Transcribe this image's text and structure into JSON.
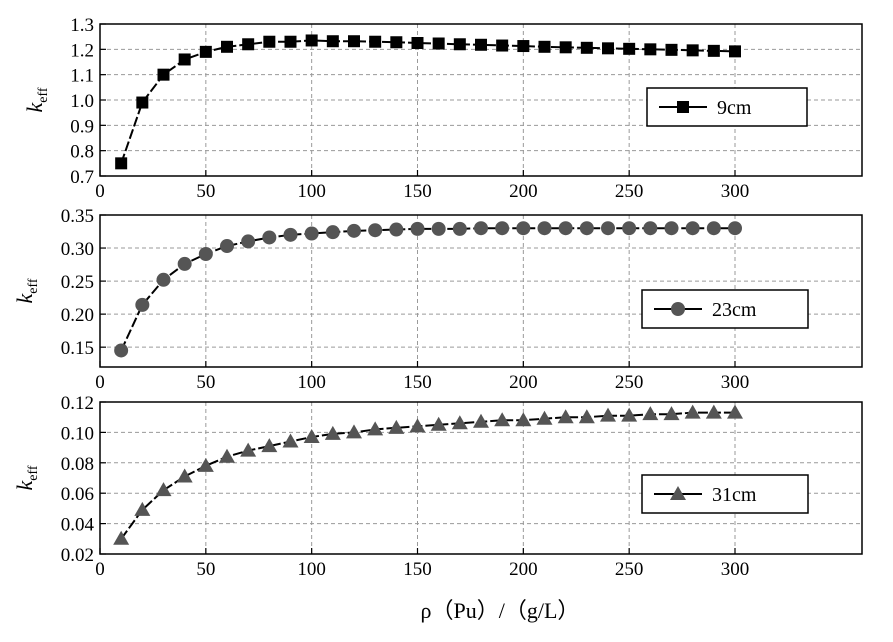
{
  "figure": {
    "xlabel": "ρ（Pu）/（g/L）",
    "ylabel_symbol": "k",
    "ylabel_subscript": "eff"
  },
  "chart_data": [
    {
      "type": "line",
      "series": [
        {
          "name": "9cm",
          "marker": "square",
          "x": [
            10,
            20,
            30,
            40,
            50,
            60,
            70,
            80,
            90,
            100,
            110,
            120,
            130,
            140,
            150,
            160,
            170,
            180,
            190,
            200,
            210,
            220,
            230,
            240,
            250,
            260,
            270,
            280,
            290,
            300
          ],
          "y": [
            0.75,
            0.99,
            1.1,
            1.16,
            1.19,
            1.21,
            1.22,
            1.23,
            1.23,
            1.235,
            1.232,
            1.232,
            1.23,
            1.228,
            1.225,
            1.223,
            1.22,
            1.218,
            1.215,
            1.213,
            1.21,
            1.208,
            1.206,
            1.204,
            1.202,
            1.2,
            1.198,
            1.196,
            1.194,
            1.192
          ]
        }
      ],
      "xlim": [
        0,
        360
      ],
      "ylim": [
        0.7,
        1.3
      ],
      "xticks": [
        "0",
        "50",
        "100",
        "150",
        "200",
        "250",
        "300"
      ],
      "yticks": [
        "0.7",
        "0.8",
        "0.9",
        "1.0",
        "1.1",
        "1.2",
        "1.3"
      ],
      "grid": true,
      "legend_position": "right"
    },
    {
      "type": "line",
      "series": [
        {
          "name": "23cm",
          "marker": "circle",
          "x": [
            10,
            20,
            30,
            40,
            50,
            60,
            70,
            80,
            90,
            100,
            110,
            120,
            130,
            140,
            150,
            160,
            170,
            180,
            190,
            200,
            210,
            220,
            230,
            240,
            250,
            260,
            270,
            280,
            290,
            300
          ],
          "y": [
            0.145,
            0.214,
            0.252,
            0.276,
            0.291,
            0.303,
            0.31,
            0.316,
            0.32,
            0.322,
            0.324,
            0.326,
            0.327,
            0.328,
            0.329,
            0.329,
            0.329,
            0.33,
            0.33,
            0.33,
            0.33,
            0.33,
            0.33,
            0.33,
            0.33,
            0.33,
            0.33,
            0.33,
            0.33,
            0.33
          ]
        }
      ],
      "xlim": [
        0,
        360
      ],
      "ylim": [
        0.12,
        0.35
      ],
      "xticks": [
        "0",
        "50",
        "100",
        "150",
        "200",
        "250",
        "300"
      ],
      "yticks": [
        "0.15",
        "0.20",
        "0.25",
        "0.30",
        "0.35"
      ],
      "grid": true,
      "legend_position": "right"
    },
    {
      "type": "line",
      "series": [
        {
          "name": "31cm",
          "marker": "triangle",
          "x": [
            10,
            20,
            30,
            40,
            50,
            60,
            70,
            80,
            90,
            100,
            110,
            120,
            130,
            140,
            150,
            160,
            170,
            180,
            190,
            200,
            210,
            220,
            230,
            240,
            250,
            260,
            270,
            280,
            290,
            300
          ],
          "y": [
            0.03,
            0.049,
            0.062,
            0.071,
            0.078,
            0.084,
            0.088,
            0.091,
            0.094,
            0.097,
            0.099,
            0.1,
            0.102,
            0.103,
            0.104,
            0.105,
            0.106,
            0.107,
            0.108,
            0.108,
            0.109,
            0.11,
            0.11,
            0.111,
            0.111,
            0.112,
            0.112,
            0.113,
            0.113,
            0.113
          ]
        }
      ],
      "xlim": [
        0,
        360
      ],
      "ylim": [
        0.02,
        0.12
      ],
      "xticks": [
        "0",
        "50",
        "100",
        "150",
        "200",
        "250",
        "300"
      ],
      "yticks": [
        "0.02",
        "0.04",
        "0.06",
        "0.08",
        "0.10",
        "0.12"
      ],
      "grid": true,
      "legend_position": "right"
    }
  ]
}
